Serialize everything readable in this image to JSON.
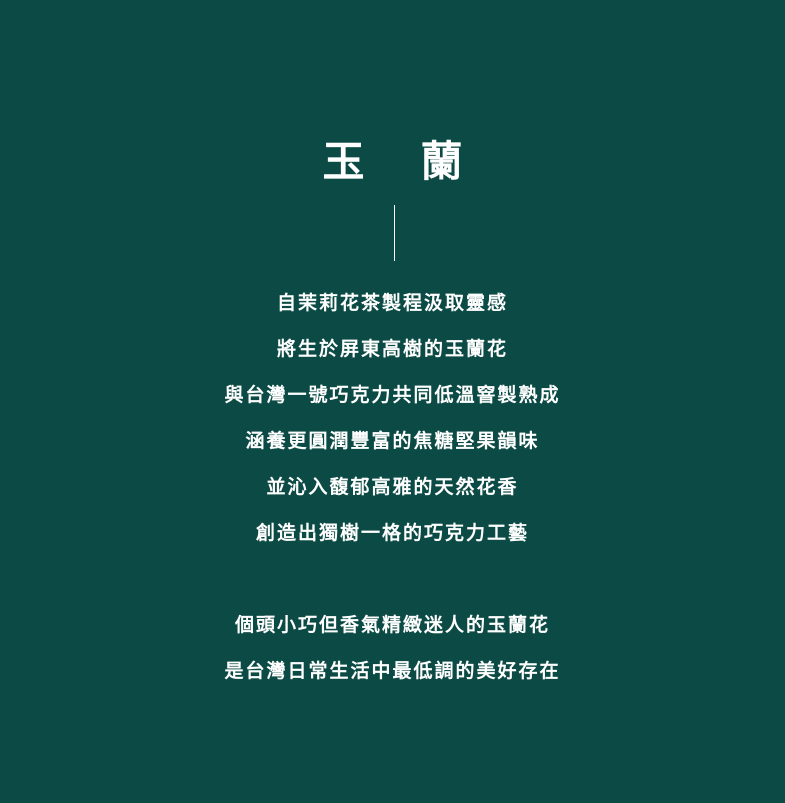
{
  "title": "玉蘭",
  "paragraph1": [
    "自茉莉花茶製程汲取靈感",
    "將生於屏東高樹的玉蘭花",
    "與台灣一號巧克力共同低溫窨製熟成",
    "涵養更圓潤豐富的焦糖堅果韻味",
    "並沁入馥郁高雅的天然花香",
    "創造出獨樹一格的巧克力工藝"
  ],
  "paragraph2": [
    "個頭小巧但香氣精緻迷人的玉蘭花",
    "是台灣日常生活中最低調的美好存在"
  ]
}
